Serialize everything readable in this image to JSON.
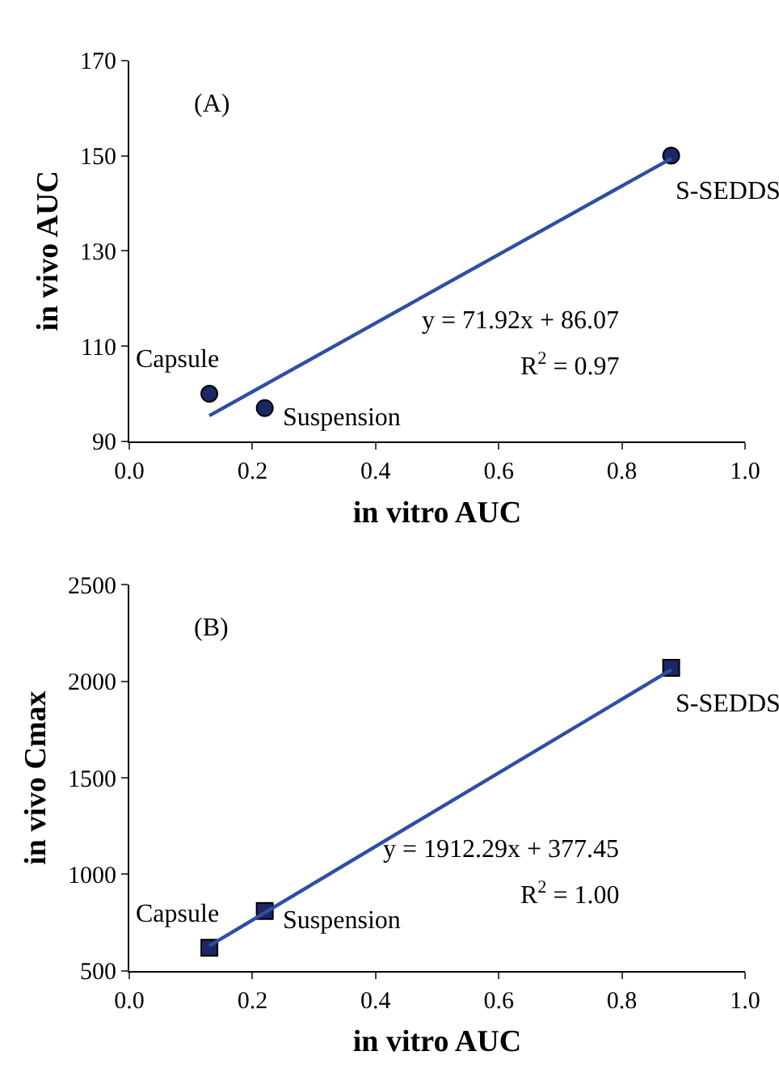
{
  "chart_data": [
    {
      "type": "scatter",
      "xlabel": "in vitro AUC",
      "ylabel": "in vivo AUC",
      "xlim": [
        0.0,
        1.0
      ],
      "xticks": [
        {
          "value": 0,
          "label": "0.0"
        },
        {
          "value": 0.2,
          "label": "0.2"
        },
        {
          "value": 0.4,
          "label": "0.4"
        },
        {
          "value": 0.6,
          "label": "0.6"
        },
        {
          "value": 0.8,
          "label": "0.8"
        },
        {
          "value": 1,
          "label": "1.0"
        }
      ],
      "ylim": [
        90,
        170
      ],
      "yticks": [
        90,
        110,
        130,
        150,
        170
      ],
      "series": [
        {
          "marker": "circle",
          "color": "#1c2766",
          "x": [
            0.13,
            0.22,
            0.88
          ],
          "values": [
            100,
            97,
            150
          ]
        },
        {
          "type": "line",
          "color": "#2e4fa3",
          "x": [
            0.13,
            0.88
          ],
          "values": [
            95.4,
            149.4
          ],
          "line_style": "solid"
        }
      ],
      "annotations": [
        "(A)",
        {
          "text": "Capsule",
          "x": 0.13,
          "y": 100
        },
        {
          "text": "Suspension",
          "x": 0.22,
          "y": 97
        },
        {
          "text": "S-SEDDS",
          "x": 0.88,
          "y": 150
        },
        "y = 71.92x + 86.07",
        "R$^{2}$ = 0.97"
      ]
    },
    {
      "type": "scatter",
      "xlabel": "in vitro AUC",
      "ylabel": "in vivo Cmax",
      "xlim": [
        0.0,
        1.0
      ],
      "xticks": [
        {
          "value": 0,
          "label": "0.0"
        },
        {
          "value": 0.2,
          "label": "0.2"
        },
        {
          "value": 0.4,
          "label": "0.4"
        },
        {
          "value": 0.6,
          "label": "0.6"
        },
        {
          "value": 0.8,
          "label": "0.8"
        },
        {
          "value": 1,
          "label": "1.0"
        }
      ],
      "ylim": [
        500,
        2500
      ],
      "yticks": [
        500,
        1000,
        1500,
        2000,
        2500
      ],
      "series": [
        {
          "marker": "square",
          "color": "#1c2766",
          "x": [
            0.13,
            0.22,
            0.88
          ],
          "values": [
            620,
            810,
            2070
          ]
        },
        {
          "type": "line",
          "color": "#2e4fa3",
          "x": [
            0.13,
            0.88
          ],
          "values": [
            630,
            2060
          ],
          "line_style": "solid"
        }
      ],
      "annotations": [
        "(B)",
        {
          "text": "Capsule",
          "x": 0.13,
          "y": 620
        },
        {
          "text": "Suspension",
          "x": 0.22,
          "y": 810
        },
        {
          "text": "S-SEDDS",
          "x": 0.88,
          "y": 2070
        },
        "y = 1912.29x + 377.45",
        "R$^{2}$ = 1.00"
      ]
    }
  ]
}
